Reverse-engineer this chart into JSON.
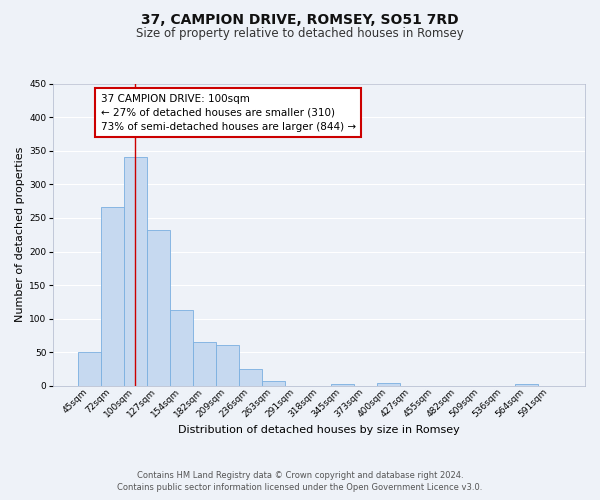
{
  "title": "37, CAMPION DRIVE, ROMSEY, SO51 7RD",
  "subtitle": "Size of property relative to detached houses in Romsey",
  "xlabel": "Distribution of detached houses by size in Romsey",
  "ylabel": "Number of detached properties",
  "categories": [
    "45sqm",
    "72sqm",
    "100sqm",
    "127sqm",
    "154sqm",
    "182sqm",
    "209sqm",
    "236sqm",
    "263sqm",
    "291sqm",
    "318sqm",
    "345sqm",
    "373sqm",
    "400sqm",
    "427sqm",
    "455sqm",
    "482sqm",
    "509sqm",
    "536sqm",
    "564sqm",
    "591sqm"
  ],
  "values": [
    50,
    267,
    340,
    232,
    113,
    66,
    61,
    25,
    7,
    0,
    0,
    3,
    0,
    4,
    0,
    0,
    0,
    0,
    0,
    3,
    0
  ],
  "bar_color": "#c6d9f0",
  "bar_edge_color": "#7aafe0",
  "bar_width": 1.0,
  "ylim": [
    0,
    450
  ],
  "yticks": [
    0,
    50,
    100,
    150,
    200,
    250,
    300,
    350,
    400,
    450
  ],
  "vline_x_index": 2,
  "vline_color": "#cc0000",
  "annotation_title": "37 CAMPION DRIVE: 100sqm",
  "annotation_line1": "← 27% of detached houses are smaller (310)",
  "annotation_line2": "73% of semi-detached houses are larger (844) →",
  "annotation_box_color": "#ffffff",
  "annotation_box_edge": "#cc0000",
  "footer_line1": "Contains HM Land Registry data © Crown copyright and database right 2024.",
  "footer_line2": "Contains public sector information licensed under the Open Government Licence v3.0.",
  "bg_color": "#eef2f8",
  "grid_color": "#ffffff",
  "title_fontsize": 10,
  "subtitle_fontsize": 8.5,
  "axis_label_fontsize": 8,
  "tick_fontsize": 6.5,
  "annotation_fontsize": 7.5,
  "footer_fontsize": 6
}
